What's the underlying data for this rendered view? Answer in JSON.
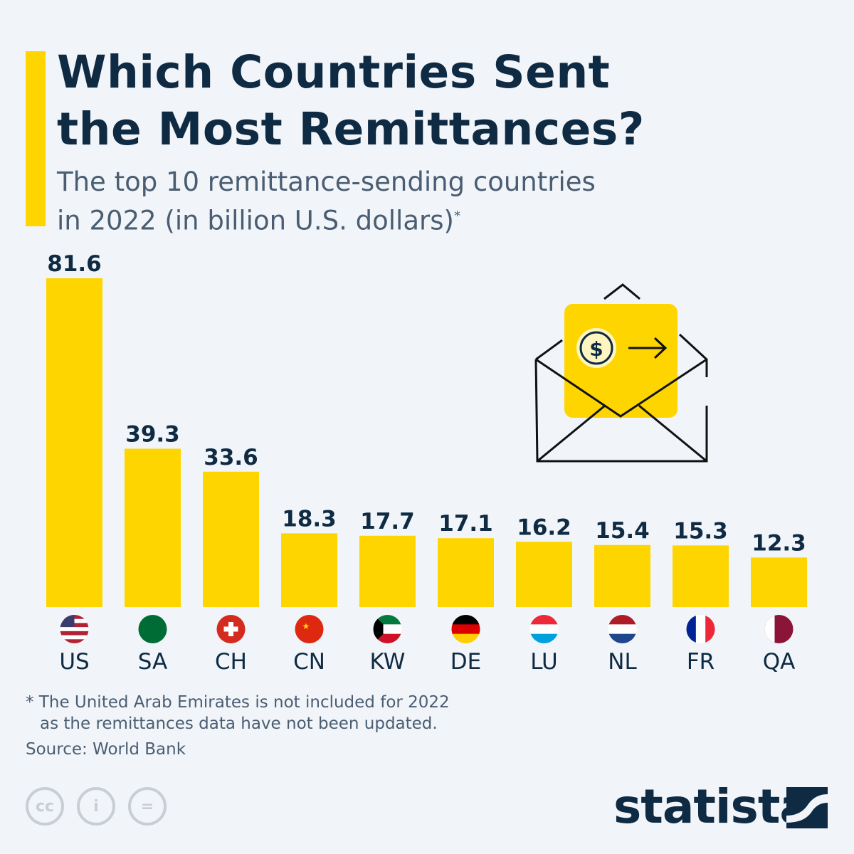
{
  "header": {
    "title_line1": "Which Countries Sent",
    "title_line2": "the Most Remittances?",
    "subtitle_line1": "The top 10 remittance-sending countries",
    "subtitle_line2": "in 2022 (in billion U.S. dollars)",
    "subtitle_mark": "*"
  },
  "chart_data": {
    "type": "bar",
    "title": "Which Countries Sent the Most Remittances?",
    "categories": [
      "US",
      "SA",
      "CH",
      "CN",
      "KW",
      "DE",
      "LU",
      "NL",
      "FR",
      "QA"
    ],
    "values": [
      81.6,
      39.3,
      33.6,
      18.3,
      17.7,
      17.1,
      16.2,
      15.4,
      15.3,
      12.3
    ],
    "data_labels": [
      "81.6",
      "39.3",
      "33.6",
      "18.3",
      "17.7",
      "17.1",
      "16.2",
      "15.4",
      "15.3",
      "12.3"
    ],
    "ylim": [
      0,
      81.6
    ],
    "grid": false,
    "bar_color": "#ffd500"
  },
  "footer": {
    "note_line1": "* The United Arab Emirates is not included for 2022",
    "note_line2": "as the remittances data have not been updated.",
    "source": "Source: World Bank",
    "license_icons": [
      "cc",
      "i",
      "="
    ],
    "brand": "statista"
  },
  "colors": {
    "accent": "#ffd500",
    "text": "#0f2a43",
    "background": "#f1f5f9"
  }
}
